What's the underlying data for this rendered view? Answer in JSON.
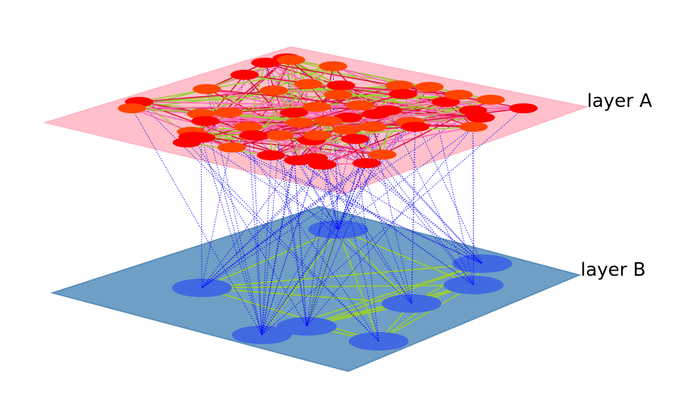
{
  "diagram": {
    "layers": [
      {
        "id": "A",
        "label": "layer A",
        "plane_color": "#ffc0cb",
        "node_colors": [
          "#ff0000",
          "#ff4500"
        ],
        "edge_colors": [
          "#ff69b4",
          "#9acd32",
          "#dc143c"
        ]
      },
      {
        "id": "B",
        "label": "layer B",
        "plane_color": "#6f9fc5",
        "node_color": "#4169e1",
        "edge_color": "#9acd32"
      }
    ],
    "interlayer_edge_color": "#0000ff",
    "interlayer_edge_style": "dotted"
  }
}
